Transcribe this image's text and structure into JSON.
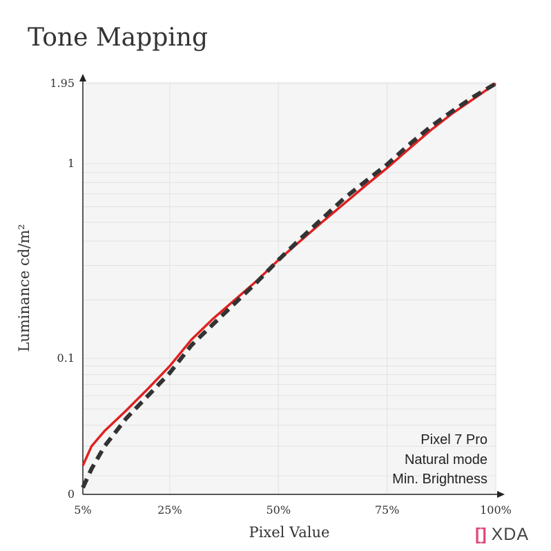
{
  "title": "Tone Mapping",
  "logo": {
    "mark": "[]",
    "text": "XDA"
  },
  "chart_data": {
    "type": "line",
    "title": "Tone Mapping",
    "xlabel": "Pixel Value",
    "ylabel": "Luminance cd/m²",
    "xlim": [
      5,
      100
    ],
    "ylim": [
      0,
      1.95
    ],
    "y_scale": "log (0 shown at bottom)",
    "x_ticks": [
      "5%",
      "25%",
      "50%",
      "75%",
      "100%"
    ],
    "x_tick_values": [
      5,
      25,
      50,
      75,
      100
    ],
    "y_ticks": [
      "0",
      "0.1",
      "1",
      "1.95"
    ],
    "grid": true,
    "annotation": [
      "Pixel 7 Pro",
      "Natural mode",
      "Min. Brightness"
    ],
    "series": [
      {
        "style": "solid",
        "color": "#e02020",
        "x": [
          5,
          7,
          10,
          15,
          20,
          25,
          30,
          35,
          40,
          45,
          50,
          55,
          60,
          65,
          70,
          75,
          80,
          85,
          90,
          95,
          100
        ],
        "y": [
          0.023,
          0.03,
          0.037,
          0.049,
          0.066,
          0.09,
          0.125,
          0.16,
          0.2,
          0.25,
          0.32,
          0.4,
          0.5,
          0.62,
          0.77,
          0.95,
          1.13,
          1.32,
          1.52,
          1.72,
          1.95
        ]
      },
      {
        "style": "dashed",
        "color": "#333333",
        "x": [
          5,
          7,
          10,
          15,
          20,
          25,
          30,
          35,
          40,
          45,
          50,
          55,
          60,
          65,
          70,
          75,
          80,
          85,
          90,
          95,
          100
        ],
        "y": [
          0.017,
          0.022,
          0.03,
          0.044,
          0.06,
          0.082,
          0.117,
          0.15,
          0.192,
          0.246,
          0.32,
          0.41,
          0.52,
          0.66,
          0.81,
          0.99,
          1.17,
          1.36,
          1.55,
          1.75,
          1.95
        ]
      }
    ]
  }
}
